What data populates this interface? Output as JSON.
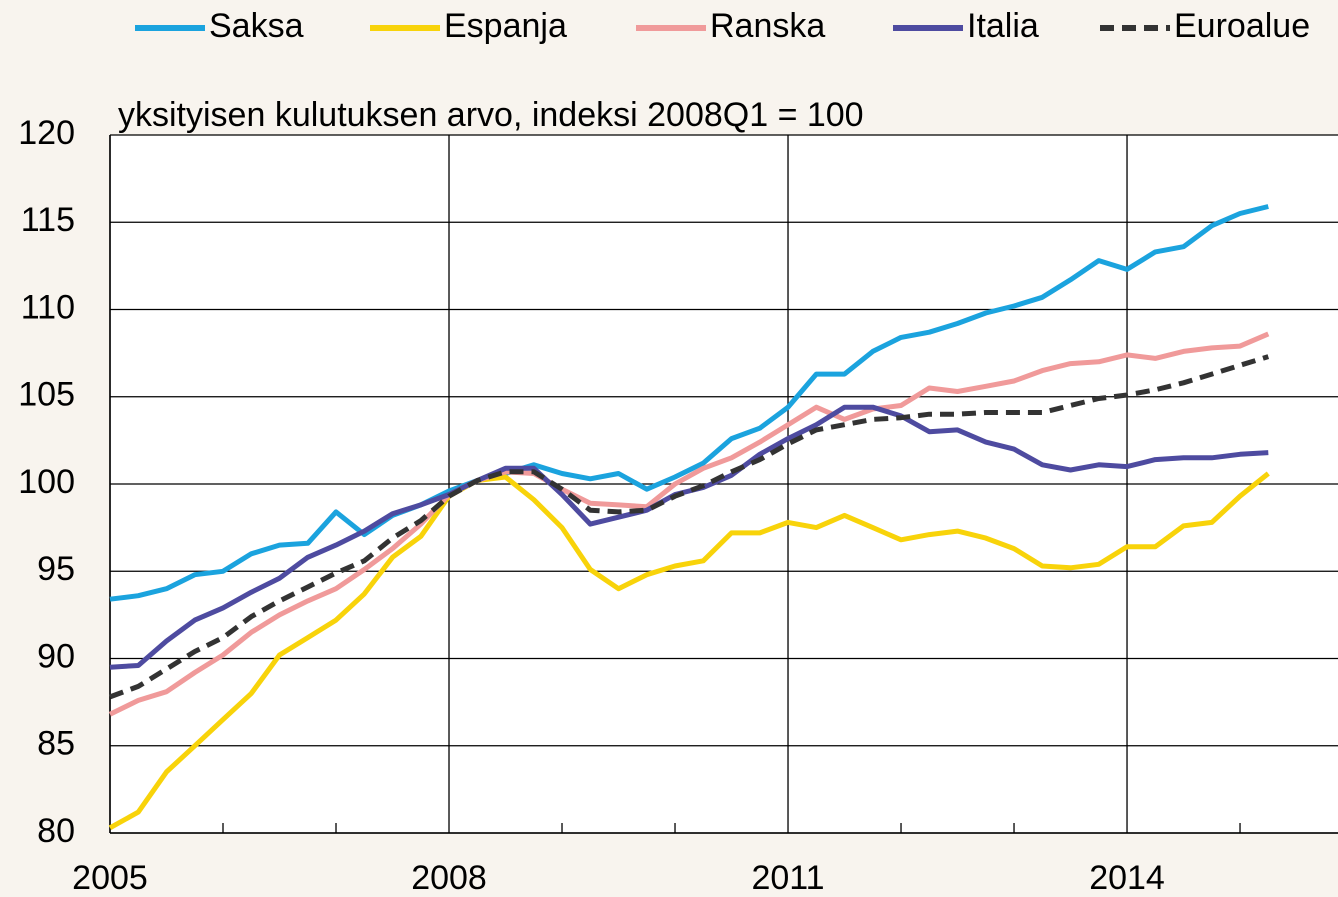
{
  "chart_data": {
    "type": "line",
    "subtitle": "yksityisen kulutuksen arvo, indeksi 2008Q1 = 100",
    "x": [
      2005,
      2005.25,
      2005.5,
      2005.75,
      2006,
      2006.25,
      2006.5,
      2006.75,
      2007,
      2007.25,
      2007.5,
      2007.75,
      2008,
      2008.25,
      2008.5,
      2008.75,
      2009,
      2009.25,
      2009.5,
      2009.75,
      2010,
      2010.25,
      2010.5,
      2010.75,
      2011,
      2011.25,
      2011.5,
      2011.75,
      2012,
      2012.25,
      2012.5,
      2012.75,
      2013,
      2013.25,
      2013.5,
      2013.75,
      2014,
      2014.25,
      2014.5,
      2014.75,
      2015,
      2015.25
    ],
    "series": [
      {
        "name": "Saksa",
        "color": "#1ba3de",
        "values": [
          93.4,
          93.6,
          94.0,
          94.8,
          95.0,
          96.0,
          96.5,
          96.6,
          98.4,
          97.1,
          98.2,
          98.8,
          99.6,
          100.2,
          100.6,
          101.1,
          100.6,
          100.3,
          100.6,
          99.7,
          100.4,
          101.2,
          102.6,
          103.2,
          104.4,
          106.3,
          106.3,
          107.6,
          108.4,
          108.7,
          109.2,
          109.8,
          110.2,
          110.7,
          111.7,
          112.8,
          112.3,
          113.3,
          113.6,
          114.8,
          115.5,
          115.9
        ]
      },
      {
        "name": "Espanja",
        "color": "#f8d30a",
        "values": [
          80.3,
          81.2,
          83.5,
          85.0,
          86.5,
          88.0,
          90.2,
          91.2,
          92.2,
          93.7,
          95.8,
          97.0,
          99.3,
          100.2,
          100.4,
          99.1,
          97.5,
          95.1,
          94.0,
          94.8,
          95.3,
          95.6,
          97.2,
          97.2,
          97.8,
          97.5,
          98.2,
          97.5,
          96.8,
          97.1,
          97.3,
          96.9,
          96.3,
          95.3,
          95.2,
          95.4,
          96.4,
          96.4,
          97.6,
          97.8,
          99.3,
          100.6
        ]
      },
      {
        "name": "Ranska",
        "color": "#f09a9a",
        "values": [
          86.8,
          87.6,
          88.1,
          89.2,
          90.2,
          91.5,
          92.5,
          93.3,
          94.0,
          95.1,
          96.3,
          97.7,
          99.4,
          100.2,
          100.7,
          100.6,
          99.7,
          98.9,
          98.8,
          98.7,
          100.0,
          100.9,
          101.5,
          102.4,
          103.4,
          104.4,
          103.7,
          104.3,
          104.5,
          105.5,
          105.3,
          105.6,
          105.9,
          106.5,
          106.9,
          107.0,
          107.4,
          107.2,
          107.6,
          107.8,
          107.9,
          108.6
        ]
      },
      {
        "name": "Italia",
        "color": "#4e4ba0",
        "values": [
          89.5,
          89.6,
          91.0,
          92.2,
          92.9,
          93.8,
          94.6,
          95.8,
          96.5,
          97.3,
          98.3,
          98.8,
          99.4,
          100.2,
          100.9,
          100.9,
          99.4,
          97.7,
          98.1,
          98.5,
          99.4,
          99.8,
          100.5,
          101.7,
          102.6,
          103.4,
          104.4,
          104.4,
          103.9,
          103.0,
          103.1,
          102.4,
          102.0,
          101.1,
          100.8,
          101.1,
          101.0,
          101.4,
          101.5,
          101.5,
          101.7,
          101.8
        ]
      },
      {
        "name": "Euroalue",
        "color": "#333333",
        "dashed": true,
        "values": [
          87.8,
          88.4,
          89.4,
          90.4,
          91.2,
          92.4,
          93.3,
          94.1,
          94.9,
          95.6,
          96.9,
          97.9,
          99.3,
          100.2,
          100.7,
          100.7,
          99.7,
          98.5,
          98.4,
          98.5,
          99.3,
          99.9,
          100.7,
          101.4,
          102.3,
          103.1,
          103.4,
          103.7,
          103.8,
          104.0,
          104.0,
          104.1,
          104.1,
          104.1,
          104.5,
          104.9,
          105.1,
          105.4,
          105.8,
          106.3,
          106.8,
          107.3
        ]
      }
    ],
    "xlim": [
      2005,
      2015.867
    ],
    "xticks": [
      2005,
      2008,
      2011,
      2014
    ],
    "xminorticks": [
      2006,
      2007,
      2009,
      2010,
      2012,
      2013,
      2015
    ],
    "ylim": [
      80,
      120
    ],
    "yticks": [
      80,
      85,
      90,
      95,
      100,
      105,
      110,
      115,
      120
    ],
    "grid": true,
    "legend": "top"
  }
}
